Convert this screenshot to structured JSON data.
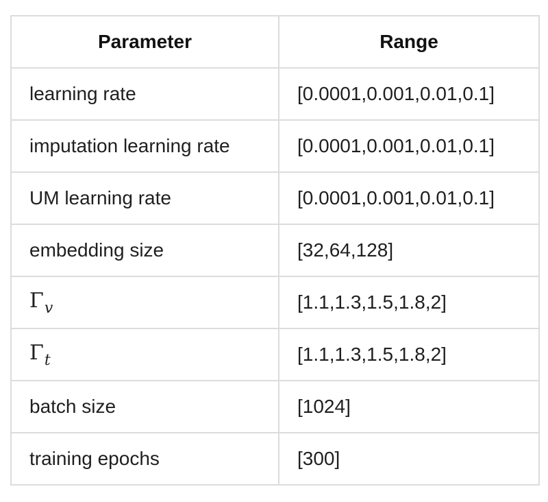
{
  "table": {
    "headers": {
      "parameter": "Parameter",
      "range": "Range"
    },
    "rows": [
      {
        "parameter": "learning rate",
        "range": "[0.0001,0.001,0.01,0.1]"
      },
      {
        "parameter": "imputation learning rate",
        "range": "[0.0001,0.001,0.01,0.1]"
      },
      {
        "parameter": "UM learning rate",
        "range": "[0.0001,0.001,0.01,0.1]"
      },
      {
        "parameter": "embedding size",
        "range": "[32,64,128]"
      },
      {
        "parameter_symbol": "Γ",
        "parameter_subscript": "v",
        "range": "[1.1,1.3,1.5,1.8,2]"
      },
      {
        "parameter_symbol": "Γ",
        "parameter_subscript": "t",
        "range": "[1.1,1.3,1.5,1.8,2]"
      },
      {
        "parameter": "batch size",
        "range": "[1024]"
      },
      {
        "parameter": "training epochs",
        "range": "[300]"
      }
    ]
  }
}
